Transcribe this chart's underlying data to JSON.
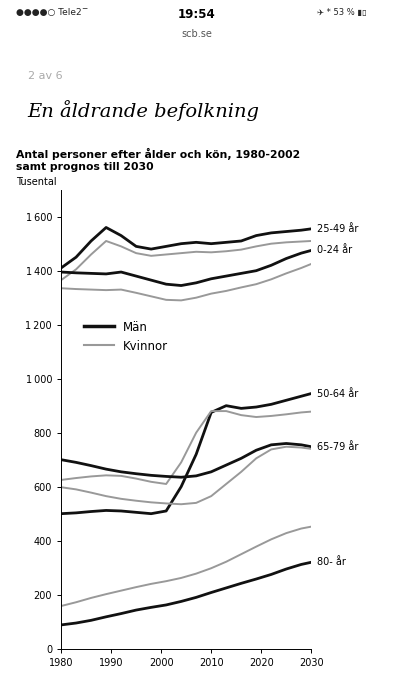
{
  "title_line1": "Antal personer efter ålder och kön, 1980-2002",
  "title_line2": "samt prognos till 2030",
  "ylabel": "Tusental",
  "background_color": "#b8cdd0",
  "chart_bg": "#ffffff",
  "man_color": "#111111",
  "kvinna_color": "#999999",
  "ylim": [
    0,
    1700
  ],
  "yticks": [
    0,
    200,
    400,
    600,
    800,
    1000,
    1200,
    1400,
    1600
  ],
  "xticks": [
    1980,
    1990,
    2000,
    2010,
    2020,
    2030
  ],
  "years": [
    1980,
    1983,
    1986,
    1989,
    1992,
    1995,
    1998,
    2001,
    2004,
    2007,
    2010,
    2013,
    2016,
    2019,
    2022,
    2025,
    2028,
    2030
  ],
  "man_25_49": [
    1410,
    1450,
    1510,
    1560,
    1530,
    1490,
    1480,
    1490,
    1500,
    1505,
    1500,
    1505,
    1510,
    1530,
    1540,
    1545,
    1550,
    1555
  ],
  "kv_25_49": [
    1365,
    1405,
    1460,
    1510,
    1490,
    1465,
    1455,
    1460,
    1465,
    1470,
    1468,
    1472,
    1478,
    1490,
    1500,
    1505,
    1508,
    1510
  ],
  "man_0_24": [
    1395,
    1392,
    1390,
    1388,
    1395,
    1380,
    1365,
    1350,
    1345,
    1355,
    1370,
    1380,
    1390,
    1400,
    1420,
    1445,
    1465,
    1475
  ],
  "kv_0_24": [
    1335,
    1332,
    1330,
    1328,
    1330,
    1318,
    1305,
    1292,
    1290,
    1300,
    1315,
    1325,
    1338,
    1350,
    1368,
    1390,
    1410,
    1425
  ],
  "man_50_64": [
    500,
    503,
    508,
    512,
    510,
    505,
    500,
    510,
    600,
    720,
    875,
    900,
    890,
    895,
    905,
    920,
    935,
    945
  ],
  "kv_50_64": [
    625,
    632,
    638,
    642,
    640,
    630,
    618,
    610,
    690,
    800,
    880,
    880,
    865,
    858,
    862,
    868,
    875,
    878
  ],
  "man_65_79": [
    700,
    690,
    678,
    665,
    655,
    648,
    642,
    638,
    635,
    640,
    655,
    680,
    705,
    735,
    755,
    760,
    755,
    748
  ],
  "kv_65_79": [
    598,
    590,
    578,
    565,
    555,
    548,
    542,
    538,
    535,
    540,
    565,
    610,
    655,
    705,
    738,
    748,
    745,
    740
  ],
  "man_80p": [
    88,
    95,
    105,
    118,
    130,
    143,
    153,
    162,
    175,
    190,
    208,
    225,
    242,
    258,
    275,
    295,
    312,
    320
  ],
  "kv_80p": [
    158,
    172,
    188,
    202,
    215,
    228,
    240,
    250,
    262,
    278,
    298,
    322,
    350,
    378,
    405,
    428,
    445,
    452
  ],
  "label_25_49": "25-49 år",
  "label_0_24": "0-24 år",
  "label_50_64": "50-64 år",
  "label_65_79": "65-79 år",
  "label_80p": "80- år",
  "legend_man": "Män",
  "legend_kvinna": "Kvinnor",
  "page_num": "2 av 6",
  "page_title": "En åldrande befolkning",
  "status_left": "●●●●○ Tele2",
  "status_center": "19:54",
  "status_url": "scb.se",
  "status_right": "53 %"
}
